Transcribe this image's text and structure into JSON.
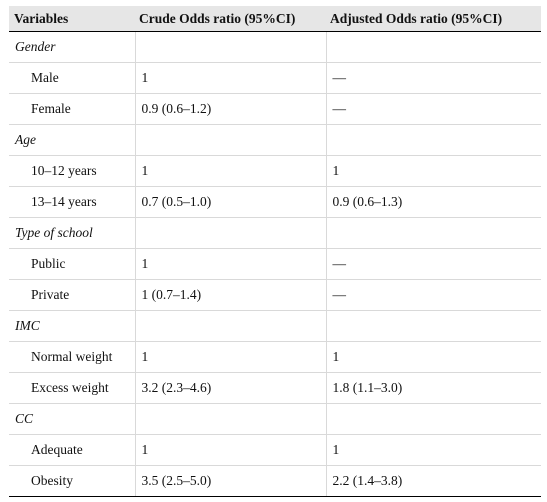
{
  "header": {
    "col1": "Variables",
    "col2": "Crude Odds ratio (95%CI)",
    "col3": "Adjusted Odds ratio (95%CI)"
  },
  "rows": [
    {
      "type": "group",
      "label": "Gender",
      "crude": "",
      "adjusted": ""
    },
    {
      "type": "item",
      "label": "Male",
      "crude": "1",
      "adjusted": "—"
    },
    {
      "type": "item",
      "label": "Female",
      "crude": "0.9 (0.6–1.2)",
      "adjusted": "—"
    },
    {
      "type": "group",
      "label": "Age",
      "crude": "",
      "adjusted": ""
    },
    {
      "type": "item",
      "label": "10–12 years",
      "crude": "1",
      "adjusted": "1"
    },
    {
      "type": "item",
      "label": "13–14 years",
      "crude": "0.7 (0.5–1.0)",
      "adjusted": "0.9 (0.6–1.3)"
    },
    {
      "type": "group",
      "label": "Type of school",
      "crude": "",
      "adjusted": ""
    },
    {
      "type": "item",
      "label": "Public",
      "crude": "1",
      "adjusted": "—"
    },
    {
      "type": "item",
      "label": "Private",
      "crude": "1 (0.7–1.4)",
      "adjusted": "—"
    },
    {
      "type": "group",
      "label": "IMC",
      "crude": "",
      "adjusted": ""
    },
    {
      "type": "item",
      "label": "Normal weight",
      "crude": "1",
      "adjusted": "1"
    },
    {
      "type": "item",
      "label": "Excess weight",
      "crude": "3.2 (2.3–4.6)",
      "adjusted": "1.8 (1.1–3.0)"
    },
    {
      "type": "group",
      "label": "CC",
      "crude": "",
      "adjusted": ""
    },
    {
      "type": "item",
      "label": "Adequate",
      "crude": "1",
      "adjusted": "1"
    },
    {
      "type": "item",
      "label": "Obesity",
      "crude": "3.5 (2.5–5.0)",
      "adjusted": "2.2 (1.4–3.8)"
    }
  ]
}
